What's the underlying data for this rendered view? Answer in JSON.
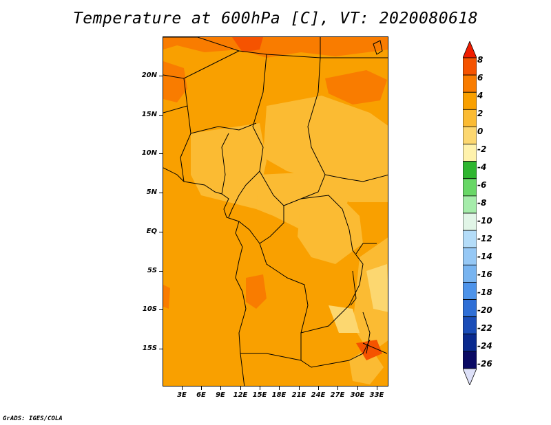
{
  "title": "Temperature at 600hPa [C], VT: 2020080618",
  "credit": "GrADS: IGES/COLA",
  "map": {
    "lat_labels": [
      "20N",
      "15N",
      "10N",
      "5N",
      "EQ",
      "5S",
      "10S",
      "15S"
    ],
    "lon_labels": [
      "3E",
      "6E",
      "9E",
      "12E",
      "15E",
      "18E",
      "21E",
      "24E",
      "27E",
      "30E",
      "33E"
    ],
    "dominant_color": "#f9a000"
  },
  "colorbar": {
    "labels": [
      "8",
      "6",
      "4",
      "2",
      "0",
      "-2",
      "-4",
      "-6",
      "-8",
      "-10",
      "-12",
      "-14",
      "-16",
      "-18",
      "-20",
      "-22",
      "-24",
      "-26"
    ],
    "colors": [
      "#f01d00",
      "#f55300",
      "#f97c00",
      "#f9a000",
      "#fbbb33",
      "#fcd770",
      "#fff2ac",
      "#2fb62f",
      "#68d766",
      "#a5ecaa",
      "#e1f5e7",
      "#b4dcf8",
      "#96c8f5",
      "#78b4f0",
      "#4d93ea",
      "#2f6fd6",
      "#1a4db8",
      "#0a2a8e",
      "#0a0a64",
      "#dde0f8"
    ]
  }
}
